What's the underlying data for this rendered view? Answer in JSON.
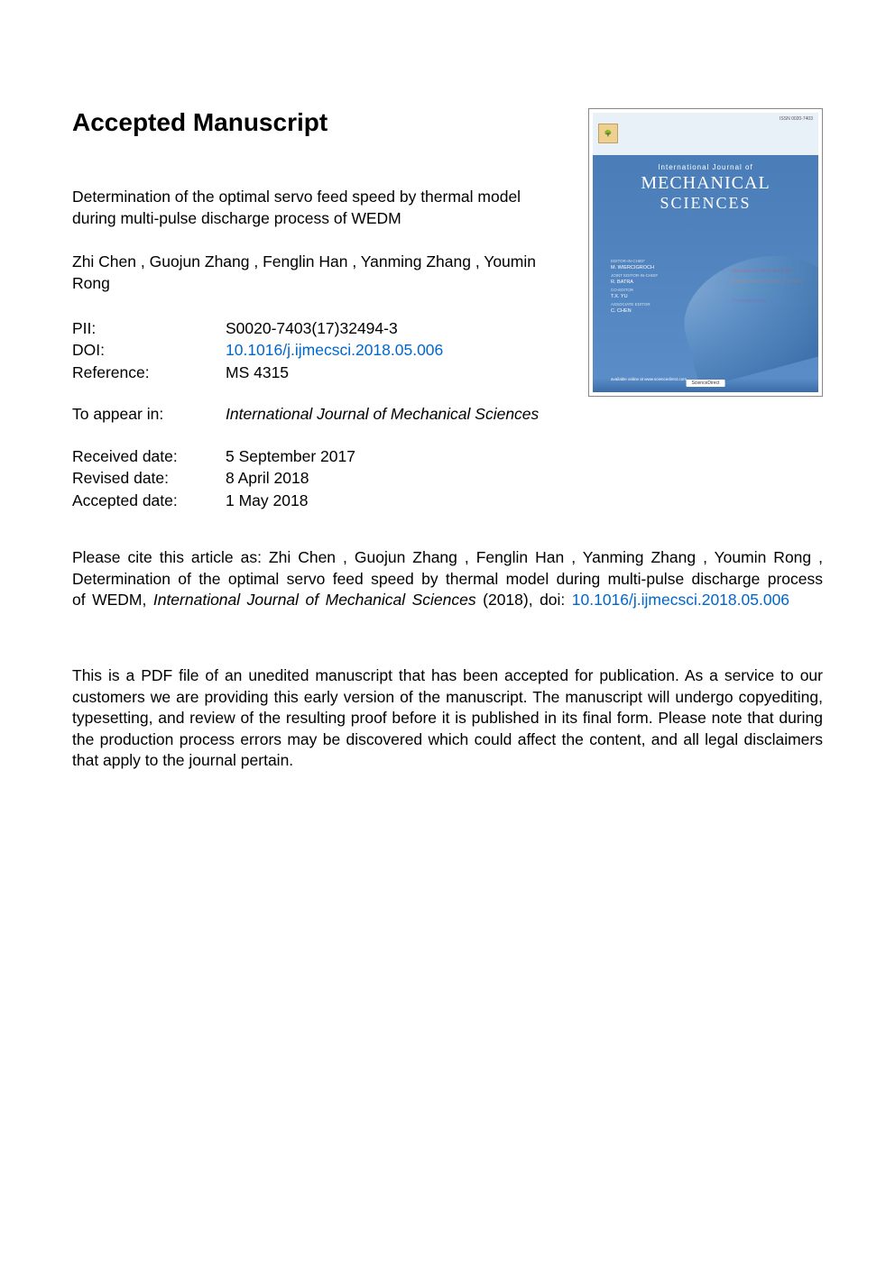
{
  "heading": "Accepted Manuscript",
  "article_title": "Determination of the optimal servo feed speed by thermal model during multi-pulse discharge process of WEDM",
  "authors": "Zhi Chen ,  Guojun Zhang ,  Fenglin Han ,  Yanming Zhang ,  Youmin Rong",
  "meta": {
    "pii_label": "PII:",
    "pii_value": "S0020-7403(17)32494-3",
    "doi_label": "DOI:",
    "doi_value": "10.1016/j.ijmecsci.2018.05.006",
    "ref_label": "Reference:",
    "ref_value": "MS 4315",
    "appear_label": "To appear in:",
    "appear_value": "International Journal of Mechanical Sciences",
    "received_label": "Received date:",
    "received_value": "5 September 2017",
    "revised_label": "Revised date:",
    "revised_value": "8 April 2018",
    "accepted_label": "Accepted date:",
    "accepted_value": "1 May 2018"
  },
  "citation": {
    "prefix": "Please cite this article as: Zhi Chen ,  Guojun Zhang ,  Fenglin Han ,  Yanming Zhang ,  Youmin Rong , Determination of the optimal servo feed speed by thermal model during multi-pulse discharge process of WEDM, ",
    "journal": "International Journal of Mechanical Sciences",
    "year": " (2018), doi: ",
    "doi_link": "10.1016/j.ijmecsci.2018.05.006"
  },
  "disclaimer": "This is a PDF file of an unedited manuscript that has been accepted for publication. As a service to our customers we are providing this early version of the manuscript. The manuscript will undergo copyediting, typesetting, and review of the resulting proof before it is published in its final form. Please note that during the production process errors may be discovered which could affect the content, and all legal disclaimers that apply to the journal pertain.",
  "cover": {
    "issn": "ISSN 0020-7403",
    "ij": "International Journal of",
    "mech": "MECHANICAL",
    "sci": "SCIENCES",
    "editors": {
      "r1": "EDITOR-IN-CHIEF",
      "n1": "M. WIERCIGROCH",
      "r2": "JOINT EDITOR-IN-CHIEF",
      "n2": "R. BATRA",
      "r3": "CO-EDITOR",
      "n3": "T.X. YU",
      "r4": "ASSOCIATE EDITOR",
      "n4": "C. CHEN"
    },
    "topics": {
      "t1": "Mechanics of solids and fluids",
      "t2": "Forming and processing of materials",
      "t3": "Structural mechanics",
      "t4": "Thermodynamics"
    },
    "footer": "available online at www.sciencedirect.com",
    "sd": "ScienceDirect"
  },
  "colors": {
    "link": "#0066cc",
    "text": "#000000",
    "background": "#ffffff",
    "cover_blue": "#5a8dc8"
  }
}
